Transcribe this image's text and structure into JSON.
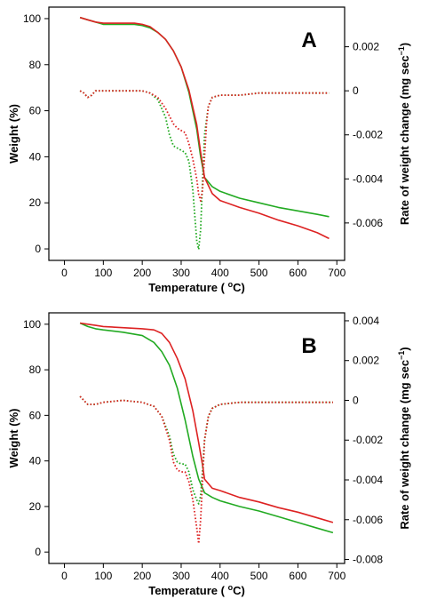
{
  "chart_data": [
    {
      "type": "line",
      "panel_label": "A",
      "xlabel_pre": "Temperature ( ",
      "xlabel_sup": "o",
      "xlabel_post": "C)",
      "ylabel": "Weight (%)",
      "y2label_main": "Rate of weight change (mg sec",
      "y2label_sup": "−1",
      "y2label_close": ")",
      "xlim": [
        -40,
        720
      ],
      "ylim": [
        -5,
        105
      ],
      "y2lim": [
        -0.0077,
        0.0038
      ],
      "xticks": [
        0,
        100,
        200,
        300,
        400,
        500,
        600,
        700
      ],
      "xtick_labels": [
        "0",
        "100",
        "200",
        "300",
        "400",
        "500",
        "600",
        "700"
      ],
      "yticks": [
        0,
        20,
        40,
        60,
        80,
        100
      ],
      "ytick_labels": [
        "0",
        "20",
        "40",
        "60",
        "80",
        "100"
      ],
      "y2ticks": [
        0.002,
        0,
        -0.002,
        -0.004,
        -0.006
      ],
      "y2tick_labels": [
        "0.002",
        "0",
        "-0.002",
        "-0.004",
        "-0.006"
      ],
      "series": [
        {
          "color": "#22aa22",
          "style": "solid",
          "axis": "left",
          "points": [
            [
              40,
              100.5
            ],
            [
              60,
              99.5
            ],
            [
              80,
              98.5
            ],
            [
              100,
              97.5
            ],
            [
              120,
              97.5
            ],
            [
              150,
              97.5
            ],
            [
              180,
              97.5
            ],
            [
              200,
              97
            ],
            [
              220,
              96
            ],
            [
              240,
              94
            ],
            [
              260,
              91
            ],
            [
              280,
              86
            ],
            [
              300,
              79
            ],
            [
              320,
              68
            ],
            [
              340,
              52
            ],
            [
              350,
              40
            ],
            [
              360,
              31
            ],
            [
              380,
              27
            ],
            [
              400,
              25
            ],
            [
              450,
              22
            ],
            [
              500,
              20
            ],
            [
              550,
              18
            ],
            [
              600,
              16.5
            ],
            [
              650,
              15
            ],
            [
              680,
              14
            ]
          ]
        },
        {
          "color": "#dd2222",
          "style": "solid",
          "axis": "left",
          "points": [
            [
              40,
              100.5
            ],
            [
              60,
              99.5
            ],
            [
              80,
              98.5
            ],
            [
              100,
              98
            ],
            [
              120,
              98
            ],
            [
              150,
              98
            ],
            [
              180,
              98
            ],
            [
              200,
              97.5
            ],
            [
              220,
              96.5
            ],
            [
              240,
              94
            ],
            [
              260,
              91
            ],
            [
              280,
              86
            ],
            [
              300,
              79
            ],
            [
              320,
              69
            ],
            [
              340,
              54
            ],
            [
              350,
              42
            ],
            [
              360,
              31
            ],
            [
              380,
              24
            ],
            [
              400,
              21
            ],
            [
              450,
              18
            ],
            [
              500,
              15.5
            ],
            [
              550,
              12.5
            ],
            [
              600,
              10
            ],
            [
              650,
              7
            ],
            [
              680,
              4.5
            ]
          ]
        },
        {
          "color": "#22aa22",
          "style": "dotted",
          "axis": "right",
          "points": [
            [
              40,
              0
            ],
            [
              50,
              -0.0001
            ],
            [
              60,
              -0.0003
            ],
            [
              70,
              -0.0002
            ],
            [
              80,
              0
            ],
            [
              100,
              0
            ],
            [
              150,
              0
            ],
            [
              200,
              0
            ],
            [
              220,
              -0.0001
            ],
            [
              240,
              -0.0004
            ],
            [
              260,
              -0.0012
            ],
            [
              270,
              -0.002
            ],
            [
              280,
              -0.0025
            ],
            [
              290,
              -0.0026
            ],
            [
              300,
              -0.0027
            ],
            [
              310,
              -0.0028
            ],
            [
              320,
              -0.0032
            ],
            [
              330,
              -0.0045
            ],
            [
              340,
              -0.0068
            ],
            [
              345,
              -0.0072
            ],
            [
              350,
              -0.0063
            ],
            [
              355,
              -0.004
            ],
            [
              360,
              -0.002
            ],
            [
              370,
              -0.0007
            ],
            [
              380,
              -0.0003
            ],
            [
              400,
              -0.0002
            ],
            [
              450,
              -0.0002
            ],
            [
              500,
              -0.0001
            ],
            [
              600,
              -0.0001
            ],
            [
              680,
              -0.0001
            ]
          ]
        },
        {
          "color": "#dd2222",
          "style": "dotted",
          "axis": "right",
          "points": [
            [
              40,
              0
            ],
            [
              50,
              -0.0001
            ],
            [
              60,
              -0.0003
            ],
            [
              70,
              -0.0002
            ],
            [
              80,
              0
            ],
            [
              100,
              0
            ],
            [
              150,
              0
            ],
            [
              200,
              0
            ],
            [
              220,
              -0.0001
            ],
            [
              240,
              -0.0003
            ],
            [
              260,
              -0.0008
            ],
            [
              280,
              -0.0015
            ],
            [
              290,
              -0.0017
            ],
            [
              300,
              -0.0018
            ],
            [
              310,
              -0.0019
            ],
            [
              320,
              -0.0024
            ],
            [
              330,
              -0.0031
            ],
            [
              340,
              -0.004
            ],
            [
              345,
              -0.0047
            ],
            [
              350,
              -0.005
            ],
            [
              355,
              -0.0045
            ],
            [
              360,
              -0.003
            ],
            [
              365,
              -0.0015
            ],
            [
              370,
              -0.0007
            ],
            [
              380,
              -0.0003
            ],
            [
              400,
              -0.0002
            ],
            [
              450,
              -0.0002
            ],
            [
              500,
              -0.0001
            ],
            [
              600,
              -0.0001
            ],
            [
              680,
              -0.0001
            ]
          ]
        }
      ]
    },
    {
      "type": "line",
      "panel_label": "B",
      "xlabel_pre": "Temperature ( ",
      "xlabel_sup": "o",
      "xlabel_post": "C)",
      "ylabel": "Weight (%)",
      "y2label_main": "Rate of weight change (mg sec",
      "y2label_sup": "−1",
      "y2label_close": ")",
      "xlim": [
        -40,
        720
      ],
      "ylim": [
        -5,
        105
      ],
      "y2lim": [
        -0.0082,
        0.0044
      ],
      "xticks": [
        0,
        100,
        200,
        300,
        400,
        500,
        600,
        700
      ],
      "xtick_labels": [
        "0",
        "100",
        "200",
        "300",
        "400",
        "500",
        "600",
        "700"
      ],
      "yticks": [
        0,
        20,
        40,
        60,
        80,
        100
      ],
      "ytick_labels": [
        "0",
        "20",
        "40",
        "60",
        "80",
        "100"
      ],
      "y2ticks": [
        0.004,
        0.002,
        0,
        -0.002,
        -0.004,
        -0.006,
        -0.008
      ],
      "y2tick_labels": [
        "0.004",
        "0.002",
        "0",
        "-0.002",
        "-0.004",
        "-0.006",
        "-0.008"
      ],
      "series": [
        {
          "color": "#22aa22",
          "style": "solid",
          "axis": "left",
          "points": [
            [
              40,
              100.5
            ],
            [
              60,
              99
            ],
            [
              80,
              98
            ],
            [
              100,
              97.5
            ],
            [
              150,
              96.5
            ],
            [
              200,
              95
            ],
            [
              230,
              92
            ],
            [
              250,
              88
            ],
            [
              270,
              82
            ],
            [
              290,
              72
            ],
            [
              310,
              58
            ],
            [
              330,
              42
            ],
            [
              345,
              32
            ],
            [
              360,
              26
            ],
            [
              380,
              24
            ],
            [
              400,
              22.5
            ],
            [
              450,
              20
            ],
            [
              500,
              18
            ],
            [
              550,
              15.5
            ],
            [
              600,
              13
            ],
            [
              650,
              10.5
            ],
            [
              690,
              8.5
            ]
          ]
        },
        {
          "color": "#dd2222",
          "style": "solid",
          "axis": "left",
          "points": [
            [
              40,
              100.5
            ],
            [
              60,
              100
            ],
            [
              80,
              99.5
            ],
            [
              100,
              99
            ],
            [
              150,
              98.5
            ],
            [
              200,
              98
            ],
            [
              230,
              97.5
            ],
            [
              250,
              96
            ],
            [
              270,
              92
            ],
            [
              290,
              85
            ],
            [
              310,
              76
            ],
            [
              330,
              62
            ],
            [
              345,
              48
            ],
            [
              355,
              38
            ],
            [
              360,
              32
            ],
            [
              370,
              30
            ],
            [
              380,
              28
            ],
            [
              400,
              27
            ],
            [
              450,
              24
            ],
            [
              500,
              22
            ],
            [
              550,
              19.5
            ],
            [
              600,
              17.5
            ],
            [
              650,
              15
            ],
            [
              690,
              13
            ]
          ]
        },
        {
          "color": "#22aa22",
          "style": "dotted",
          "axis": "right",
          "points": [
            [
              40,
              0.0002
            ],
            [
              50,
              0
            ],
            [
              60,
              -0.0002
            ],
            [
              80,
              -0.0002
            ],
            [
              100,
              -0.0001
            ],
            [
              150,
              0
            ],
            [
              200,
              -0.0001
            ],
            [
              230,
              -0.0003
            ],
            [
              250,
              -0.0008
            ],
            [
              270,
              -0.0018
            ],
            [
              280,
              -0.0027
            ],
            [
              290,
              -0.0031
            ],
            [
              300,
              -0.0032
            ],
            [
              310,
              -0.0032
            ],
            [
              320,
              -0.0036
            ],
            [
              330,
              -0.0045
            ],
            [
              340,
              -0.005
            ],
            [
              345,
              -0.0052
            ],
            [
              350,
              -0.0048
            ],
            [
              355,
              -0.0035
            ],
            [
              360,
              -0.002
            ],
            [
              370,
              -0.0008
            ],
            [
              380,
              -0.0004
            ],
            [
              400,
              -0.0002
            ],
            [
              450,
              -0.0001
            ],
            [
              500,
              -0.0001
            ],
            [
              600,
              -0.0001
            ],
            [
              690,
              -0.0001
            ]
          ]
        },
        {
          "color": "#dd2222",
          "style": "dotted",
          "axis": "right",
          "points": [
            [
              40,
              0.0002
            ],
            [
              50,
              0
            ],
            [
              60,
              -0.0002
            ],
            [
              80,
              -0.0002
            ],
            [
              100,
              -0.0001
            ],
            [
              150,
              0
            ],
            [
              200,
              -0.0001
            ],
            [
              230,
              -0.0003
            ],
            [
              250,
              -0.0008
            ],
            [
              270,
              -0.002
            ],
            [
              280,
              -0.0031
            ],
            [
              290,
              -0.0035
            ],
            [
              300,
              -0.0036
            ],
            [
              310,
              -0.0036
            ],
            [
              320,
              -0.0041
            ],
            [
              330,
              -0.005
            ],
            [
              340,
              -0.0064
            ],
            [
              345,
              -0.0072
            ],
            [
              350,
              -0.006
            ],
            [
              355,
              -0.004
            ],
            [
              360,
              -0.002
            ],
            [
              370,
              -0.0008
            ],
            [
              380,
              -0.0004
            ],
            [
              400,
              -0.0002
            ],
            [
              450,
              -0.0001
            ],
            [
              500,
              -0.0001
            ],
            [
              600,
              -0.0001
            ],
            [
              690,
              -0.0001
            ]
          ]
        }
      ]
    }
  ]
}
